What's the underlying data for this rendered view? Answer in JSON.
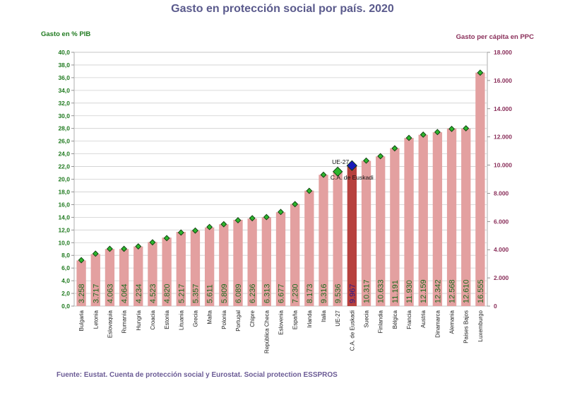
{
  "title": "Gasto en protección social por país. 2020",
  "source": "Fuente: Eustat. Cuenta de protección social y Eurostat. Social protection ESSPROS",
  "colors": {
    "bar": "#e3a0a0",
    "bar_highlight": "#b7413e",
    "bar_label": "#1f6b1f",
    "bar_label_highlight": "#2a1a8c",
    "marker": "#2db52d",
    "marker_eu": "#2db52d",
    "marker_highlight": "#1a1ab8",
    "grid": "#cfcfcf",
    "left_axis": "#1f7a1f",
    "right_axis": "#8a2f5a"
  },
  "chart_data": {
    "type": "bar",
    "title": "Gasto en protección social por país. 2020",
    "ylabel": "Gasto en % PIB",
    "y2label": "Gasto per cápita en PPC",
    "ylim": [
      0,
      40
    ],
    "y2lim": [
      0,
      18000
    ],
    "yticks": [
      "0,0",
      "2,0",
      "4,0",
      "6,0",
      "8,0",
      "10,0",
      "12,0",
      "14,0",
      "16,0",
      "18,0",
      "20,0",
      "22,0",
      "24,0",
      "26,0",
      "28,0",
      "30,0",
      "32,0",
      "34,0",
      "36,0",
      "38,0",
      "40,0"
    ],
    "y2ticks": [
      "0",
      "2.000",
      "4.000",
      "6.000",
      "8.000",
      "10.000",
      "12.000",
      "14.000",
      "16.000",
      "18.000"
    ],
    "grid": true,
    "categories": [
      "Bulgaria",
      "Letonia",
      "Eslovaquia",
      "Rumanía",
      "Hungría",
      "Croacia",
      "Estonia",
      "Lituania",
      "Grecia",
      "Malta",
      "Polonia",
      "Portugal",
      "Chipre",
      "República Checa",
      "Eslovenia",
      "España",
      "Irlanda",
      "Italia",
      "UE-27",
      "C.A. de Euskadi",
      "Suecia",
      "Finlandia",
      "Bélgica",
      "Francia",
      "Austria",
      "Dinamarca",
      "Alemania",
      "Países Bajos",
      "Luxemburgo"
    ],
    "series": [
      {
        "name": "Gasto en % PIB",
        "axis": "left",
        "values": [
          7.2,
          8.2,
          9.0,
          9.0,
          9.4,
          10.1,
          10.8,
          11.7,
          11.9,
          12.4,
          12.9,
          13.6,
          13.8,
          14.0,
          14.8,
          16.1,
          18.2,
          20.7,
          21.2,
          22.1,
          22.9,
          23.6,
          24.9,
          26.5,
          27.0,
          27.4,
          28.0,
          28.0,
          36.8
        ]
      },
      {
        "name": "Gasto per cápita en PPC",
        "axis": "right",
        "values": [
          3258,
          3717,
          4063,
          4064,
          4234,
          4523,
          4820,
          5217,
          5357,
          5611,
          5809,
          6089,
          6236,
          6313,
          6677,
          7230,
          8173,
          9316,
          9536,
          9967,
          10317,
          10633,
          11191,
          11930,
          12159,
          12342,
          12568,
          12610,
          16555
        ],
        "labels": [
          "3.258",
          "3.717",
          "4.063",
          "4.064",
          "4.234",
          "4.523",
          "4.820",
          "5.217",
          "5.357",
          "5.611",
          "5.809",
          "6.089",
          "6.236",
          "6.313",
          "6.677",
          "7.230",
          "8.173",
          "9.316",
          "9.536",
          "9.967",
          "10.317",
          "10.633",
          "11.191",
          "11.930",
          "12.159",
          "12.342",
          "12.568",
          "12.610",
          "16.555"
        ]
      }
    ],
    "highlight_category": "C.A. de Euskadi",
    "annotations": [
      {
        "text": "UE-27"
      },
      {
        "text": "C.A. de Euskadi"
      }
    ]
  }
}
